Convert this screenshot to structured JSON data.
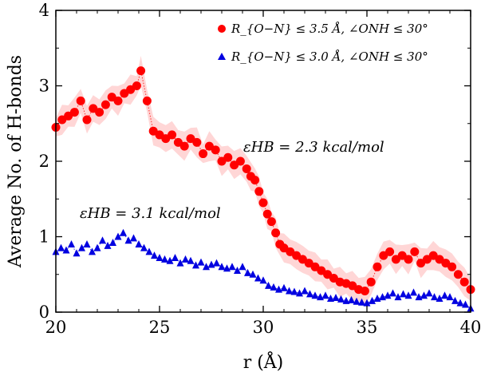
{
  "chart_data": {
    "type": "scatter",
    "xlabel": "r (Å)",
    "ylabel": "Average No. of H-bonds",
    "xlim": [
      20,
      40
    ],
    "ylim": [
      0,
      4
    ],
    "xticks": [
      "20",
      "25",
      "30",
      "35",
      "40"
    ],
    "yticks": [
      "0",
      "1",
      "2",
      "3",
      "4"
    ],
    "grid": false,
    "legend_position": "top-right",
    "annotations": [
      {
        "text": "εHB = 2.3 kcal/mol",
        "x": 29.1,
        "y": 2.1
      },
      {
        "text": "εHB = 3.1 kcal/mol",
        "x": 21.5,
        "y": 1.2
      }
    ],
    "series": [
      {
        "name": "R_{O−N} ≤ 3.5 Å, ∠ONH ≤ 30°",
        "color": "#ff0000",
        "marker": "circle",
        "band_color": "#ffd6d6",
        "x": [
          20.0,
          20.3,
          20.6,
          20.9,
          21.2,
          21.5,
          21.8,
          22.1,
          22.4,
          22.7,
          23.0,
          23.3,
          23.6,
          23.9,
          24.1,
          24.4,
          24.7,
          25.0,
          25.3,
          25.6,
          25.9,
          26.2,
          26.5,
          26.8,
          27.1,
          27.4,
          27.7,
          28.0,
          28.3,
          28.6,
          28.9,
          29.2,
          29.4,
          29.6,
          29.8,
          30.0,
          30.2,
          30.4,
          30.6,
          30.8,
          31.0,
          31.3,
          31.6,
          31.9,
          32.2,
          32.5,
          32.8,
          33.1,
          33.4,
          33.7,
          34.0,
          34.3,
          34.6,
          34.9,
          35.2,
          35.5,
          35.8,
          36.1,
          36.4,
          36.7,
          37.0,
          37.3,
          37.6,
          37.9,
          38.2,
          38.5,
          38.8,
          39.1,
          39.4,
          39.7,
          40.0
        ],
        "values": [
          2.45,
          2.55,
          2.6,
          2.65,
          2.8,
          2.55,
          2.7,
          2.65,
          2.75,
          2.85,
          2.8,
          2.9,
          2.95,
          3.0,
          3.2,
          2.8,
          2.4,
          2.35,
          2.3,
          2.35,
          2.25,
          2.2,
          2.3,
          2.25,
          2.1,
          2.2,
          2.15,
          2.0,
          2.05,
          1.95,
          2.0,
          1.9,
          1.8,
          1.75,
          1.6,
          1.45,
          1.3,
          1.2,
          1.05,
          0.9,
          0.85,
          0.8,
          0.75,
          0.7,
          0.65,
          0.6,
          0.55,
          0.5,
          0.45,
          0.4,
          0.38,
          0.35,
          0.3,
          0.28,
          0.4,
          0.6,
          0.75,
          0.8,
          0.7,
          0.75,
          0.7,
          0.8,
          0.65,
          0.7,
          0.75,
          0.7,
          0.65,
          0.6,
          0.5,
          0.4,
          0.3
        ]
      },
      {
        "name": "R_{O−N} ≤ 3.0 Å, ∠ONH ≤ 30°",
        "color": "#0000e0",
        "marker": "triangle",
        "x": [
          20.0,
          20.25,
          20.5,
          20.75,
          21.0,
          21.25,
          21.5,
          21.75,
          22.0,
          22.25,
          22.5,
          22.75,
          23.0,
          23.25,
          23.5,
          23.75,
          24.0,
          24.25,
          24.5,
          24.75,
          25.0,
          25.25,
          25.5,
          25.75,
          26.0,
          26.25,
          26.5,
          26.75,
          27.0,
          27.25,
          27.5,
          27.75,
          28.0,
          28.25,
          28.5,
          28.75,
          29.0,
          29.25,
          29.5,
          29.75,
          30.0,
          30.25,
          30.5,
          30.75,
          31.0,
          31.25,
          31.5,
          31.75,
          32.0,
          32.25,
          32.5,
          32.75,
          33.0,
          33.25,
          33.5,
          33.75,
          34.0,
          34.25,
          34.5,
          34.75,
          35.0,
          35.25,
          35.5,
          35.75,
          36.0,
          36.25,
          36.5,
          36.75,
          37.0,
          37.25,
          37.5,
          37.75,
          38.0,
          38.25,
          38.5,
          38.75,
          39.0,
          39.25,
          39.5,
          39.75,
          40.0
        ],
        "values": [
          0.8,
          0.85,
          0.82,
          0.9,
          0.78,
          0.85,
          0.9,
          0.8,
          0.85,
          0.95,
          0.88,
          0.92,
          1.0,
          1.05,
          0.95,
          0.98,
          0.9,
          0.85,
          0.8,
          0.75,
          0.72,
          0.7,
          0.68,
          0.72,
          0.65,
          0.7,
          0.68,
          0.62,
          0.66,
          0.6,
          0.63,
          0.65,
          0.6,
          0.58,
          0.6,
          0.55,
          0.6,
          0.52,
          0.5,
          0.45,
          0.42,
          0.35,
          0.33,
          0.3,
          0.32,
          0.28,
          0.27,
          0.25,
          0.28,
          0.24,
          0.22,
          0.2,
          0.22,
          0.18,
          0.19,
          0.17,
          0.15,
          0.16,
          0.14,
          0.13,
          0.12,
          0.15,
          0.18,
          0.2,
          0.22,
          0.25,
          0.2,
          0.24,
          0.22,
          0.26,
          0.2,
          0.22,
          0.25,
          0.2,
          0.18,
          0.22,
          0.2,
          0.15,
          0.12,
          0.1,
          0.05
        ]
      }
    ]
  }
}
